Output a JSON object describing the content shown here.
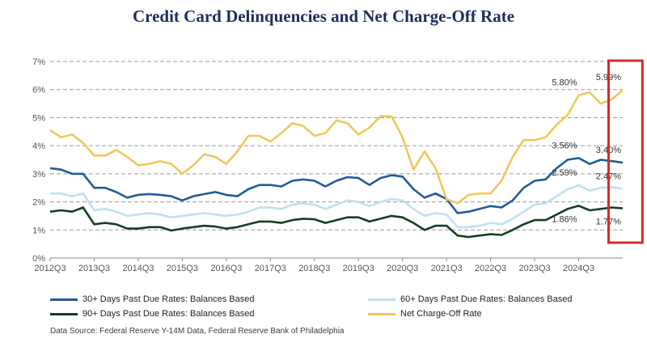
{
  "title": "Credit Card Delinquencies and Net Charge-Off Rate",
  "source": "Data Source: Federal Reserve Y-14M Data, Federal Reserve Bank of Philadelphia",
  "colors": {
    "dpd30": "#1f5c99",
    "dpd60": "#bfe0f2",
    "dpd90": "#163d26",
    "nco": "#f0c85a",
    "highlight": "#d42b2b",
    "grid": "#9a9a9a"
  },
  "chart_data": {
    "type": "line",
    "x_start": "2012Q3",
    "xticks": [
      "2012Q3",
      "2013Q3",
      "2014Q3",
      "2015Q3",
      "2016Q3",
      "2017Q3",
      "2018Q3",
      "2019Q3",
      "2020Q3",
      "2021Q3",
      "2022Q3",
      "2023Q3",
      "2024Q3"
    ],
    "yticks": [
      "0%",
      "1%",
      "2%",
      "3%",
      "4%",
      "5%",
      "6%",
      "7%"
    ],
    "ylim": [
      0,
      7
    ],
    "grid": "horizontal dashed",
    "legend_position": "bottom",
    "series": [
      {
        "key": "dpd30",
        "name": "30+ Days Past Due Rates: Balances Based",
        "values": [
          3.2,
          3.15,
          3.0,
          3.0,
          2.5,
          2.5,
          2.35,
          2.15,
          2.25,
          2.28,
          2.25,
          2.2,
          2.05,
          2.2,
          2.28,
          2.35,
          2.25,
          2.2,
          2.45,
          2.6,
          2.6,
          2.55,
          2.75,
          2.8,
          2.75,
          2.55,
          2.75,
          2.88,
          2.85,
          2.6,
          2.85,
          2.95,
          2.9,
          2.45,
          2.15,
          2.3,
          2.1,
          1.6,
          1.65,
          1.75,
          1.85,
          1.8,
          2.05,
          2.5,
          2.75,
          2.8,
          3.2,
          3.5,
          3.56,
          3.35,
          3.5,
          3.45,
          3.4
        ]
      },
      {
        "key": "dpd60",
        "name": "60+ Days Past Due Rates: Balances Based",
        "values": [
          2.3,
          2.3,
          2.2,
          2.3,
          1.7,
          1.75,
          1.65,
          1.5,
          1.55,
          1.6,
          1.55,
          1.45,
          1.5,
          1.55,
          1.6,
          1.55,
          1.5,
          1.55,
          1.65,
          1.8,
          1.8,
          1.75,
          1.9,
          1.95,
          1.9,
          1.75,
          1.9,
          2.05,
          2.0,
          1.85,
          2.0,
          2.1,
          2.05,
          1.75,
          1.5,
          1.6,
          1.55,
          1.1,
          1.1,
          1.15,
          1.25,
          1.2,
          1.4,
          1.65,
          1.9,
          1.95,
          2.2,
          2.45,
          2.59,
          2.4,
          2.5,
          2.52,
          2.47
        ]
      },
      {
        "key": "dpd90",
        "name": "90+ Days Past Due Rates: Balances Based",
        "values": [
          1.65,
          1.7,
          1.65,
          1.8,
          1.2,
          1.25,
          1.2,
          1.05,
          1.05,
          1.1,
          1.1,
          0.98,
          1.05,
          1.1,
          1.15,
          1.12,
          1.05,
          1.1,
          1.2,
          1.3,
          1.3,
          1.25,
          1.35,
          1.4,
          1.38,
          1.25,
          1.35,
          1.45,
          1.45,
          1.3,
          1.4,
          1.5,
          1.45,
          1.25,
          1.0,
          1.15,
          1.15,
          0.8,
          0.75,
          0.8,
          0.85,
          0.82,
          1.0,
          1.2,
          1.35,
          1.35,
          1.55,
          1.75,
          1.86,
          1.7,
          1.75,
          1.8,
          1.77
        ]
      },
      {
        "key": "nco",
        "name": "Net Charge-Off Rate",
        "values": [
          4.55,
          4.3,
          4.4,
          4.1,
          3.65,
          3.65,
          3.85,
          3.6,
          3.3,
          3.35,
          3.45,
          3.35,
          3.0,
          3.3,
          3.7,
          3.6,
          3.35,
          3.8,
          4.35,
          4.35,
          4.15,
          4.45,
          4.8,
          4.7,
          4.35,
          4.45,
          4.9,
          4.8,
          4.4,
          4.65,
          5.05,
          5.05,
          4.3,
          3.15,
          3.8,
          3.2,
          2.1,
          1.95,
          2.25,
          2.3,
          2.3,
          2.75,
          3.6,
          4.2,
          4.2,
          4.3,
          4.75,
          5.1,
          5.8,
          5.9,
          5.5,
          5.65,
          5.99
        ]
      }
    ],
    "annotations": [
      {
        "text": "5.80%",
        "x": 48,
        "y": 5.8,
        "align": "end",
        "dy": -12
      },
      {
        "text": "5.99%",
        "x": 52,
        "y": 5.99,
        "align": "end",
        "dy": -12
      },
      {
        "text": "3.56%",
        "x": 48,
        "y": 3.56,
        "align": "end",
        "dy": -12
      },
      {
        "text": "3.40%",
        "x": 52,
        "y": 3.4,
        "align": "end",
        "dy": -12
      },
      {
        "text": "2.59%",
        "x": 48,
        "y": 2.59,
        "align": "end",
        "dy": -12
      },
      {
        "text": "2.47%",
        "x": 52,
        "y": 2.47,
        "align": "end",
        "dy": -12
      },
      {
        "text": "1.86%",
        "x": 48,
        "y": 1.86,
        "align": "end",
        "dy": 20
      },
      {
        "text": "1.77%",
        "x": 52,
        "y": 1.77,
        "align": "end",
        "dy": 20
      }
    ],
    "highlight_range": [
      51.3,
      53.2
    ]
  }
}
